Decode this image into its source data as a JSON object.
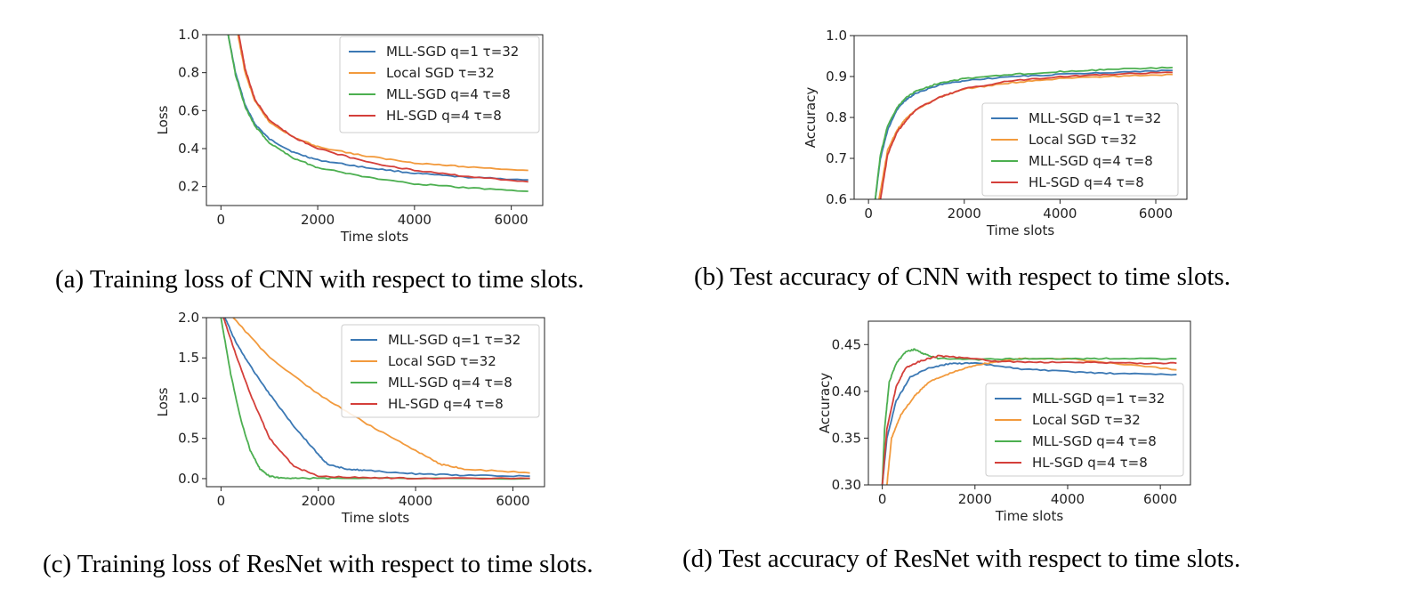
{
  "colors": {
    "mll1": "#3b78b4",
    "local": "#f29a3d",
    "mll4": "#4caf50",
    "hl": "#d43f3a"
  },
  "captions": {
    "a": "(a) Training loss of CNN with respect to time slots.",
    "b": "(b) Test accuracy of CNN with respect to time slots.",
    "c": "(c) Training loss of ResNet with respect to time slots.",
    "d": "(d) Test accuracy of ResNet with respect to time slots."
  },
  "chart_data": [
    {
      "type": "line",
      "xlabel": "Time slots",
      "ylabel": "Loss",
      "xlim": [
        -300,
        6650
      ],
      "ylim": [
        0.1,
        1.0
      ],
      "xticks": [
        0,
        2000,
        4000,
        6000
      ],
      "xtick_labels": [
        "0",
        "2000",
        "4000",
        "6000"
      ],
      "yticks": [
        0.2,
        0.4,
        0.6,
        0.8,
        1.0
      ],
      "ytick_labels": [
        "0.2",
        "0.4",
        "0.6",
        "0.8",
        "1.0"
      ],
      "legend_position": "top-right",
      "series": [
        {
          "name": "MLL-SGD q=1 τ=32",
          "color_key": "mll1",
          "x": [
            150,
            300,
            500,
            700,
            1000,
            1500,
            2000,
            3000,
            4000,
            5000,
            6350
          ],
          "y": [
            1.0,
            0.8,
            0.63,
            0.53,
            0.45,
            0.38,
            0.34,
            0.3,
            0.27,
            0.25,
            0.235
          ]
        },
        {
          "name": "Local SGD τ=32",
          "color_key": "local",
          "x": [
            350,
            500,
            700,
            1000,
            1500,
            2000,
            3000,
            4000,
            5000,
            6350
          ],
          "y": [
            1.0,
            0.8,
            0.65,
            0.54,
            0.46,
            0.41,
            0.36,
            0.325,
            0.305,
            0.285
          ]
        },
        {
          "name": "MLL-SGD q=4 τ=8",
          "color_key": "mll4",
          "x": [
            150,
            300,
            500,
            700,
            1000,
            1500,
            2000,
            3000,
            4000,
            5000,
            6350
          ],
          "y": [
            1.0,
            0.79,
            0.62,
            0.52,
            0.43,
            0.35,
            0.3,
            0.25,
            0.215,
            0.195,
            0.175
          ]
        },
        {
          "name": "HL-SGD q=4 τ=8",
          "color_key": "hl",
          "x": [
            370,
            500,
            700,
            1000,
            1500,
            2000,
            3000,
            4000,
            5000,
            6350
          ],
          "y": [
            1.0,
            0.82,
            0.66,
            0.55,
            0.46,
            0.4,
            0.33,
            0.285,
            0.255,
            0.225
          ]
        }
      ]
    },
    {
      "type": "line",
      "xlabel": "Time slots",
      "ylabel": "Accuracy",
      "xlim": [
        -300,
        6650
      ],
      "ylim": [
        0.6,
        1.0
      ],
      "xticks": [
        0,
        2000,
        4000,
        6000
      ],
      "xtick_labels": [
        "0",
        "2000",
        "4000",
        "6000"
      ],
      "yticks": [
        0.6,
        0.7,
        0.8,
        0.9,
        1.0
      ],
      "ytick_labels": [
        "0.6",
        "0.7",
        "0.8",
        "0.9",
        "1.0"
      ],
      "legend_position": "lower-right",
      "series": [
        {
          "name": "MLL-SGD q=1 τ=32",
          "color_key": "mll1",
          "x": [
            140,
            250,
            400,
            600,
            800,
            1000,
            1500,
            2000,
            3000,
            4000,
            5000,
            6350
          ],
          "y": [
            0.6,
            0.7,
            0.77,
            0.82,
            0.845,
            0.86,
            0.88,
            0.89,
            0.9,
            0.905,
            0.91,
            0.915
          ]
        },
        {
          "name": "Local SGD τ=32",
          "color_key": "local",
          "x": [
            220,
            400,
            600,
            800,
            1000,
            1500,
            2000,
            3000,
            4000,
            5000,
            6350
          ],
          "y": [
            0.6,
            0.72,
            0.77,
            0.8,
            0.82,
            0.85,
            0.87,
            0.885,
            0.895,
            0.9,
            0.905
          ]
        },
        {
          "name": "MLL-SGD q=4 τ=8",
          "color_key": "mll4",
          "x": [
            140,
            250,
            400,
            600,
            800,
            1000,
            1500,
            2000,
            3000,
            4000,
            5000,
            6350
          ],
          "y": [
            0.6,
            0.71,
            0.78,
            0.825,
            0.85,
            0.865,
            0.885,
            0.895,
            0.905,
            0.912,
            0.917,
            0.922
          ]
        },
        {
          "name": "HL-SGD q=4 τ=8",
          "color_key": "hl",
          "x": [
            250,
            400,
            600,
            800,
            1000,
            1500,
            2000,
            3000,
            4000,
            5000,
            6350
          ],
          "y": [
            0.6,
            0.71,
            0.765,
            0.795,
            0.82,
            0.85,
            0.87,
            0.89,
            0.9,
            0.905,
            0.91
          ]
        }
      ]
    },
    {
      "type": "line",
      "xlabel": "Time slots",
      "ylabel": "Loss",
      "xlim": [
        -300,
        6650
      ],
      "ylim": [
        -0.1,
        2.0
      ],
      "xticks": [
        0,
        2000,
        4000,
        6000
      ],
      "xtick_labels": [
        "0",
        "2000",
        "4000",
        "6000"
      ],
      "yticks": [
        0.0,
        0.5,
        1.0,
        1.5,
        2.0
      ],
      "ytick_labels": [
        "0.0",
        "0.5",
        "1.0",
        "1.5",
        "2.0"
      ],
      "legend_position": "top-right",
      "series": [
        {
          "name": "MLL-SGD q=1 τ=32",
          "color_key": "mll1",
          "x": [
            80,
            300,
            600,
            1000,
            1500,
            2000,
            2200,
            2600,
            3000,
            4000,
            5000,
            6350
          ],
          "y": [
            2.0,
            1.7,
            1.4,
            1.05,
            0.65,
            0.3,
            0.17,
            0.12,
            0.1,
            0.06,
            0.04,
            0.03
          ]
        },
        {
          "name": "Local SGD τ=32",
          "color_key": "local",
          "x": [
            250,
            1000,
            2000,
            3000,
            4000,
            4500,
            5000,
            6350
          ],
          "y": [
            2.0,
            1.5,
            1.05,
            0.68,
            0.35,
            0.18,
            0.12,
            0.07
          ]
        },
        {
          "name": "MLL-SGD q=4 τ=8",
          "color_key": "mll4",
          "x": [
            0,
            200,
            400,
            600,
            800,
            1000,
            1200,
            1600,
            2500,
            6350
          ],
          "y": [
            2.0,
            1.3,
            0.75,
            0.35,
            0.12,
            0.03,
            0.01,
            0.005,
            0.003,
            0.002
          ]
        },
        {
          "name": "HL-SGD q=4 τ=8",
          "color_key": "hl",
          "x": [
            50,
            300,
            600,
            1000,
            1500,
            2000,
            3000,
            4000,
            6350
          ],
          "y": [
            2.0,
            1.55,
            1.05,
            0.5,
            0.15,
            0.03,
            0.01,
            0.005,
            0.004
          ]
        }
      ]
    },
    {
      "type": "line",
      "xlabel": "Time slots",
      "ylabel": "Accuracy",
      "xlim": [
        -300,
        6650
      ],
      "ylim": [
        0.3,
        0.475
      ],
      "xticks": [
        0,
        2000,
        4000,
        6000
      ],
      "xtick_labels": [
        "0",
        "2000",
        "4000",
        "6000"
      ],
      "yticks": [
        0.3,
        0.35,
        0.4,
        0.45
      ],
      "ytick_labels": [
        "0.30",
        "0.35",
        "0.40",
        "0.45"
      ],
      "legend_position": "lower-right",
      "series": [
        {
          "name": "MLL-SGD q=1 τ=32",
          "color_key": "mll1",
          "x": [
            0,
            100,
            300,
            600,
            1000,
            1500,
            2000,
            3000,
            4000,
            5000,
            6350
          ],
          "y": [
            0.3,
            0.35,
            0.39,
            0.415,
            0.425,
            0.43,
            0.43,
            0.424,
            0.421,
            0.419,
            0.418
          ]
        },
        {
          "name": "Local SGD τ=32",
          "color_key": "local",
          "x": [
            100,
            200,
            400,
            700,
            1000,
            1500,
            2000,
            2500,
            3000,
            4000,
            5000,
            6350
          ],
          "y": [
            0.3,
            0.35,
            0.375,
            0.395,
            0.41,
            0.42,
            0.428,
            0.432,
            0.435,
            0.435,
            0.43,
            0.423
          ]
        },
        {
          "name": "MLL-SGD q=4 τ=8",
          "color_key": "mll4",
          "x": [
            0,
            50,
            150,
            300,
            500,
            700,
            900,
            1200,
            2000,
            3000,
            4000,
            5000,
            6350
          ],
          "y": [
            0.3,
            0.36,
            0.41,
            0.43,
            0.442,
            0.445,
            0.44,
            0.435,
            0.434,
            0.435,
            0.435,
            0.435,
            0.435
          ]
        },
        {
          "name": "HL-SGD q=4 τ=8",
          "color_key": "hl",
          "x": [
            0,
            100,
            300,
            500,
            800,
            1200,
            1700,
            2500,
            3500,
            4500,
            5500,
            6350
          ],
          "y": [
            0.3,
            0.36,
            0.405,
            0.425,
            0.432,
            0.438,
            0.436,
            0.432,
            0.431,
            0.431,
            0.43,
            0.43
          ]
        }
      ]
    }
  ]
}
